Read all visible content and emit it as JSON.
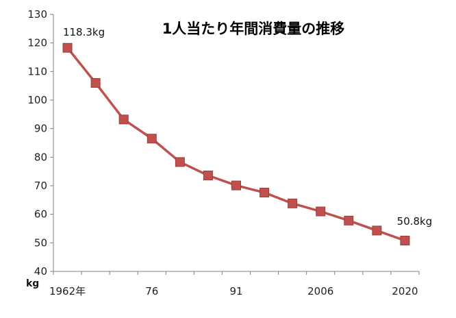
{
  "chart_data": {
    "type": "line",
    "title": "1人当たり年間消費量の推移",
    "ylabel": "kg",
    "xlabel": "",
    "ylim": [
      40,
      130
    ],
    "yticks": [
      40,
      50,
      60,
      70,
      80,
      90,
      100,
      110,
      120,
      130
    ],
    "x_tick_labels": [
      {
        "index": 0,
        "label": "1962年"
      },
      {
        "index": 3,
        "label": "76"
      },
      {
        "index": 6,
        "label": "91"
      },
      {
        "index": 9,
        "label": "2006"
      },
      {
        "index": 12,
        "label": "2020"
      }
    ],
    "grid": false,
    "legend": "none",
    "series": [
      {
        "values": [
          118.3,
          106.0,
          93.2,
          86.5,
          78.3,
          73.6,
          70.1,
          67.6,
          63.8,
          61.0,
          57.8,
          54.3,
          50.8
        ],
        "color": "#c0504d"
      }
    ],
    "data_labels": [
      {
        "index": 0,
        "text": "118.3kg"
      },
      {
        "index": 12,
        "text": "50.8kg"
      }
    ]
  }
}
